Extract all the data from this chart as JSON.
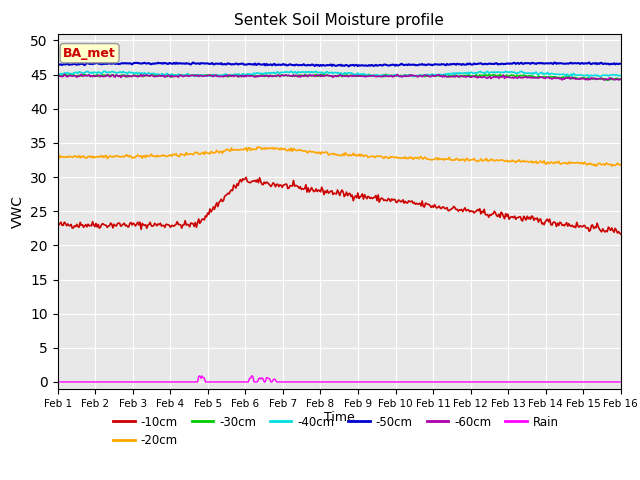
{
  "title": "Sentek Soil Moisture profile",
  "xlabel": "Time",
  "ylabel": "VWC",
  "xlim": [
    0,
    15
  ],
  "ylim": [
    -1,
    51
  ],
  "yticks": [
    0,
    5,
    10,
    15,
    20,
    25,
    30,
    35,
    40,
    45,
    50
  ],
  "xtick_labels": [
    "Feb 1",
    "Feb 2",
    "Feb 3",
    "Feb 4",
    "Feb 5",
    "Feb 6",
    "Feb 7",
    "Feb 8",
    "Feb 9",
    "Feb 10",
    "Feb 11",
    "Feb 12",
    "Feb 13",
    "Feb 14",
    "Feb 15",
    "Feb 16"
  ],
  "background_color": "#e8e8e8",
  "annotation_text": "BA_met",
  "annotation_bbox_facecolor": "#ffffcc",
  "annotation_bbox_edgecolor": "#999999",
  "series": {
    "d10cm": {
      "label": "-10cm",
      "color": "#cc0000",
      "lw": 1.2
    },
    "d20cm": {
      "label": "-20cm",
      "color": "#ffa500",
      "lw": 1.2
    },
    "d30cm": {
      "label": "-30cm",
      "color": "#00cc00",
      "lw": 1.2
    },
    "d40cm": {
      "label": "-40cm",
      "color": "#00dddd",
      "lw": 1.2
    },
    "d50cm": {
      "label": "-50cm",
      "color": "#0000cc",
      "lw": 1.5
    },
    "d60cm": {
      "label": "-60cm",
      "color": "#aa00aa",
      "lw": 1.2
    },
    "rain": {
      "label": "Rain",
      "color": "#ff00ff",
      "lw": 1.0
    }
  },
  "figsize": [
    6.4,
    4.8
  ],
  "dpi": 100
}
